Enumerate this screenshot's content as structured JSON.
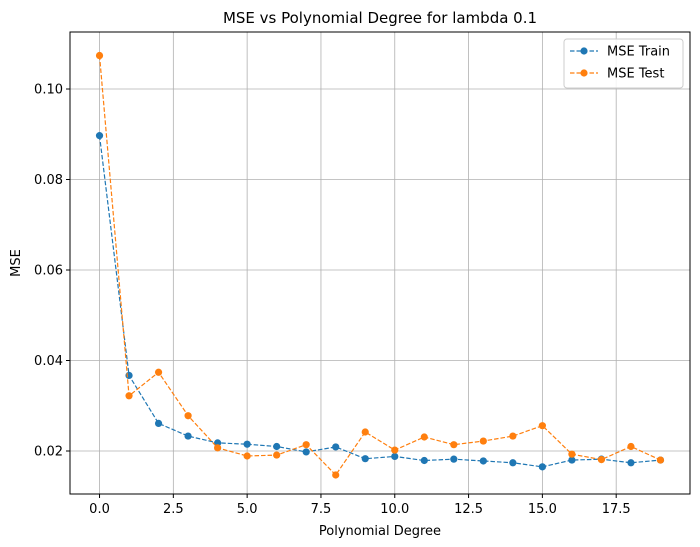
{
  "chart_data": {
    "type": "line",
    "title": "MSE vs Polynomial Degree for lambda 0.1",
    "xlabel": "Polynomial Degree",
    "ylabel": "MSE",
    "xlim": [
      -1.0,
      20.0
    ],
    "ylim": [
      0.0105,
      0.1126
    ],
    "x_ticks": [
      0.0,
      2.5,
      5.0,
      7.5,
      10.0,
      12.5,
      15.0,
      17.5
    ],
    "x_tick_labels": [
      "0.0",
      "2.5",
      "5.0",
      "7.5",
      "10.0",
      "12.5",
      "15.0",
      "17.5"
    ],
    "y_ticks": [
      0.02,
      0.04,
      0.06,
      0.08,
      0.1
    ],
    "y_tick_labels": [
      "0.02",
      "0.04",
      "0.06",
      "0.08",
      "0.10"
    ],
    "grid": true,
    "legend_position": "top-right",
    "x": [
      0,
      1,
      2,
      3,
      4,
      5,
      6,
      7,
      8,
      9,
      10,
      11,
      12,
      13,
      14,
      15,
      16,
      17,
      18,
      19
    ],
    "series": [
      {
        "name": "MSE Train",
        "color": "#1f77b4",
        "linestyle": "dashed",
        "marker": "circle",
        "values": [
          0.0897,
          0.0367,
          0.0261,
          0.0233,
          0.0218,
          0.0215,
          0.021,
          0.0198,
          0.0209,
          0.0183,
          0.0188,
          0.0179,
          0.0182,
          0.0178,
          0.0174,
          0.0165,
          0.018,
          0.0182,
          0.0174,
          0.018
        ]
      },
      {
        "name": "MSE Test",
        "color": "#ff7f0e",
        "linestyle": "dashed",
        "marker": "circle",
        "values": [
          0.1074,
          0.0322,
          0.0374,
          0.0278,
          0.0207,
          0.0189,
          0.0191,
          0.0214,
          0.0147,
          0.0242,
          0.0202,
          0.0231,
          0.0214,
          0.0222,
          0.0233,
          0.0256,
          0.0193,
          0.0181,
          0.021,
          0.018
        ]
      }
    ]
  }
}
